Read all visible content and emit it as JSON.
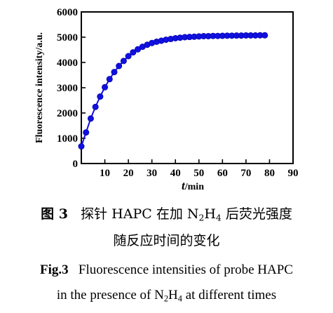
{
  "chart_data": {
    "type": "line",
    "xlabel": "t/min",
    "ylabel": "Fluorescence intensity/a.u.",
    "xlim": [
      0,
      90
    ],
    "ylim": [
      0,
      6000
    ],
    "xticks": [
      10,
      20,
      30,
      40,
      50,
      60,
      70,
      80,
      90
    ],
    "yticks": [
      0,
      1000,
      2000,
      3000,
      4000,
      5000,
      6000
    ],
    "series_color": "#1010e0",
    "x": [
      0,
      2,
      4,
      6,
      8,
      10,
      12,
      14,
      16,
      18,
      20,
      22,
      24,
      26,
      28,
      30,
      32,
      34,
      36,
      38,
      40,
      42,
      44,
      46,
      48,
      50,
      52,
      54,
      56,
      58,
      60,
      62,
      64,
      66,
      68,
      70,
      72,
      74,
      76,
      78
    ],
    "y": [
      680,
      1230,
      1780,
      2240,
      2650,
      3020,
      3340,
      3620,
      3860,
      4060,
      4250,
      4400,
      4520,
      4620,
      4700,
      4770,
      4820,
      4860,
      4900,
      4930,
      4960,
      4980,
      5000,
      5010,
      5020,
      5030,
      5040,
      5040,
      5050,
      5050,
      5055,
      5060,
      5060,
      5065,
      5065,
      5070,
      5070,
      5070,
      5075,
      5075
    ]
  },
  "caption": {
    "cn_fig": "图 3",
    "cn_line1": "探针 HAPC 在加 N",
    "cn_sub1": "2",
    "cn_mid": "H",
    "cn_sub2": "4",
    "cn_tail": " 后荧光强度",
    "cn_line2": "随反应时间的变化",
    "en_fig": "Fig.3",
    "en_line1": "Fluorescence intensities of probe HAPC",
    "en_line2_pre": "in the presence of N",
    "en_sub1": "2",
    "en_mid": "H",
    "en_sub2": "4",
    "en_tail": " at different times"
  }
}
